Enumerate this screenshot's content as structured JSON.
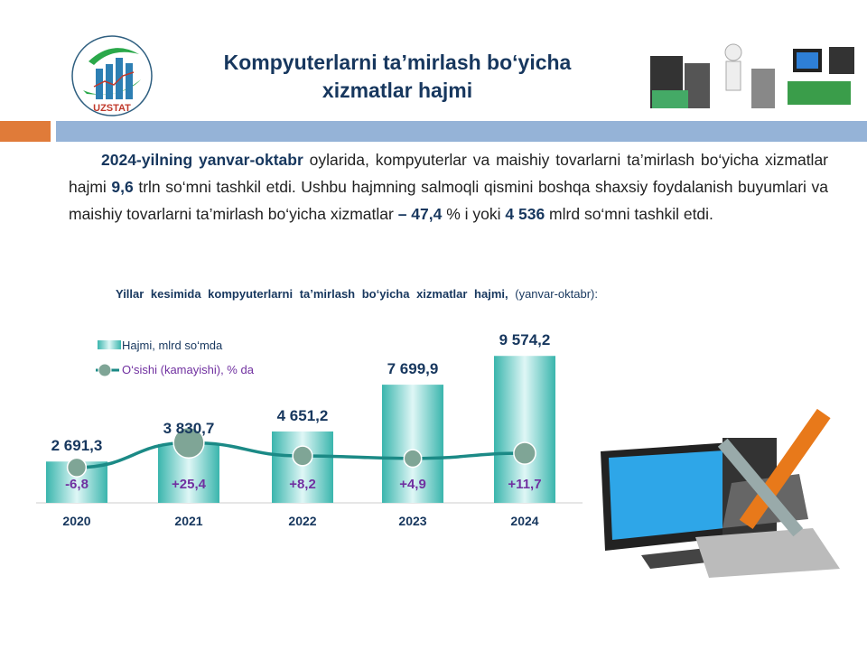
{
  "header": {
    "logo_text": "UZSTAT",
    "title_line1": "Kompyuterlarni ta’mirlash bo‘yicha",
    "title_line2": "xizmatlar hajmi"
  },
  "paragraph": {
    "p1_bold": "2024-yilning yanvar-oktabr",
    "p1": " oylarida, kompyuterlar va maishiy tovarlarni ta’mirlash bo‘yicha xizmatlar hajmi ",
    "p2_bold": "9,6",
    "p2": " trln so‘mni tashkil etdi. Ushbu hajmning salmoqli qismini boshqa shaxsiy foydalanish buyumlari va maishiy tovarlarni ta’mirlash bo‘yicha xizmatlar ",
    "p3_bold": "– 47,4",
    "p3": " % i  yoki ",
    "p4_bold": "4 536",
    "p4": " mlrd  so‘mni tashkil etdi."
  },
  "chart_data": {
    "type": "bar+line",
    "title": "Yillar kesimida kompyuterlarni ta’mirlash bo‘yicha xizmatlar hajmi,",
    "subtitle": "(yanvar-oktabr):",
    "categories": [
      "2020",
      "2021",
      "2022",
      "2023",
      "2024"
    ],
    "series": [
      {
        "name": "Hajmi,  mlrd so‘mda",
        "type": "bar",
        "values": [
          2691.3,
          3830.7,
          4651.2,
          7699.9,
          9574.2
        ],
        "labels": [
          "2 691,3",
          "3 830,7",
          "4 651,2",
          "7 699,9",
          "9 574,2"
        ],
        "color": "#3cb8b0"
      },
      {
        "name": "O‘sishi (kamayishi),  % da",
        "type": "line",
        "values": [
          -6.8,
          25.4,
          8.2,
          4.9,
          11.7
        ],
        "labels": [
          "-6,8",
          "+25,4",
          "+8,2",
          "+4,9",
          "+11,7"
        ],
        "color": "#1b8a86",
        "marker_color": "#7fa596"
      }
    ],
    "legend": "top-left",
    "grid": false
  },
  "colors": {
    "title": "#17375e",
    "orange": "#e07b39",
    "band": "#95b3d7",
    "growth_label": "#7030a0"
  }
}
